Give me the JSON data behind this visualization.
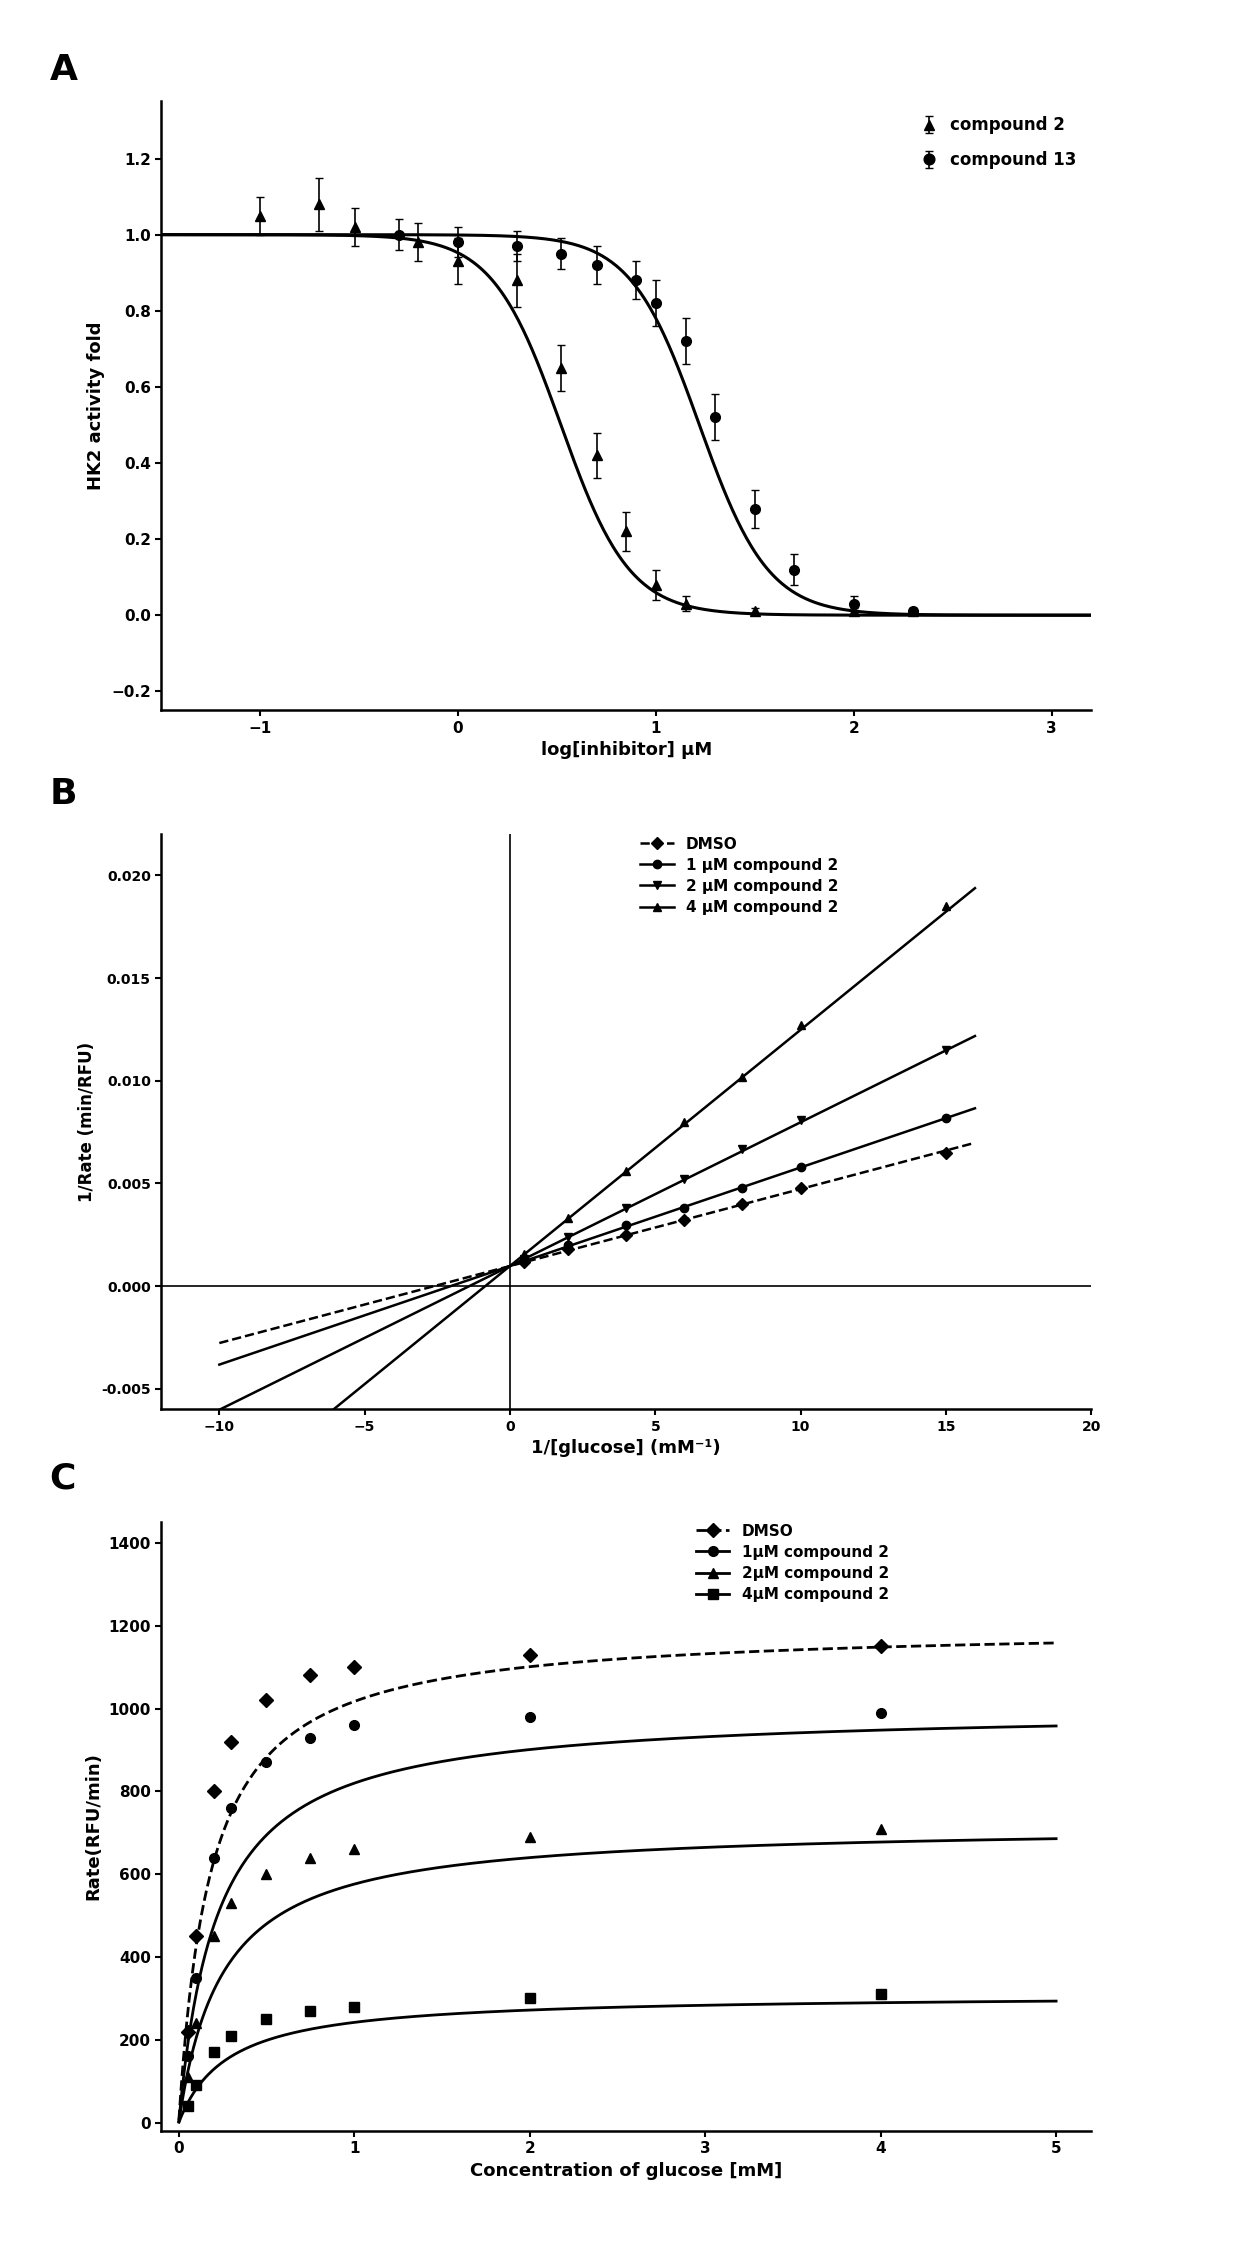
{
  "panel_A": {
    "label": "A",
    "xlabel": "log[inhibitor] μM",
    "ylabel": "HK2 activity fold",
    "xlim": [
      -1.5,
      3.2
    ],
    "ylim": [
      -0.25,
      1.35
    ],
    "xticks": [
      -1,
      0,
      1,
      2,
      3
    ],
    "yticks": [
      -0.2,
      0.0,
      0.2,
      0.4,
      0.6,
      0.8,
      1.0,
      1.2
    ],
    "compound2": {
      "x_data": [
        -1.0,
        -0.7,
        -0.52,
        -0.2,
        0.0,
        0.3,
        0.52,
        0.7,
        0.85,
        1.0,
        1.15,
        1.5,
        2.0,
        2.3
      ],
      "y_data": [
        1.05,
        1.08,
        1.02,
        0.98,
        0.93,
        0.88,
        0.65,
        0.42,
        0.22,
        0.08,
        0.03,
        0.01,
        0.01,
        0.01
      ],
      "y_err": [
        0.05,
        0.07,
        0.05,
        0.05,
        0.06,
        0.07,
        0.06,
        0.06,
        0.05,
        0.04,
        0.02,
        0.01,
        0.01,
        0.01
      ],
      "ic50_log": 0.52,
      "hill": 2.5,
      "color": "#000000",
      "marker": "^",
      "label": "compound 2"
    },
    "compound13": {
      "x_data": [
        -0.3,
        0.0,
        0.3,
        0.52,
        0.7,
        0.9,
        1.0,
        1.15,
        1.3,
        1.5,
        1.7,
        2.0,
        2.3
      ],
      "y_data": [
        1.0,
        0.98,
        0.97,
        0.95,
        0.92,
        0.88,
        0.82,
        0.72,
        0.52,
        0.28,
        0.12,
        0.03,
        0.01
      ],
      "y_err": [
        0.04,
        0.04,
        0.04,
        0.04,
        0.05,
        0.05,
        0.06,
        0.06,
        0.06,
        0.05,
        0.04,
        0.02,
        0.01
      ],
      "ic50_log": 1.22,
      "hill": 2.5,
      "color": "#000000",
      "marker": "o",
      "label": "compound 13"
    }
  },
  "panel_B": {
    "label": "B",
    "xlabel": "1/[glucose] (mM⁻¹)",
    "ylabel": "1/Rate (min/RFU)",
    "xlim": [
      -12,
      20
    ],
    "ylim": [
      -0.006,
      0.022
    ],
    "xticks": [
      -10,
      -5,
      0,
      5,
      10,
      15,
      20
    ],
    "yticks": [
      -0.005,
      0.0,
      0.005,
      0.01,
      0.015,
      0.02
    ],
    "lines": [
      {
        "label": "DMSO",
        "color": "#000000",
        "linestyle": "--",
        "marker": "D",
        "slope": 0.000375,
        "intercept": 0.00098,
        "x_pts": [
          0.5,
          2,
          4,
          6,
          8,
          10,
          15
        ],
        "y_pts": [
          0.00116,
          0.0018,
          0.0025,
          0.0032,
          0.004,
          0.0048,
          0.0065
        ]
      },
      {
        "label": "1 μM compound 2",
        "color": "#000000",
        "linestyle": "-",
        "marker": "o",
        "slope": 0.00048,
        "intercept": 0.00098,
        "x_pts": [
          0.5,
          2,
          4,
          6,
          8,
          10,
          15
        ],
        "y_pts": [
          0.00122,
          0.002,
          0.003,
          0.0038,
          0.0048,
          0.0058,
          0.0082
        ]
      },
      {
        "label": "2 μM compound 2",
        "color": "#000000",
        "linestyle": "-",
        "marker": "v",
        "slope": 0.0007,
        "intercept": 0.00098,
        "x_pts": [
          0.5,
          2,
          4,
          6,
          8,
          10,
          15
        ],
        "y_pts": [
          0.00133,
          0.0024,
          0.0038,
          0.0052,
          0.0067,
          0.0081,
          0.0115
        ]
      },
      {
        "label": "4 μM compound 2",
        "color": "#000000",
        "linestyle": "-",
        "marker": "^",
        "slope": 0.00115,
        "intercept": 0.00098,
        "x_pts": [
          0.5,
          2,
          4,
          6,
          8,
          10,
          15
        ],
        "y_pts": [
          0.00156,
          0.0033,
          0.0056,
          0.008,
          0.0102,
          0.0127,
          0.0185
        ]
      }
    ]
  },
  "panel_C": {
    "label": "C",
    "xlabel": "Concentration of glucose [mM]",
    "ylabel": "Rate(RFU/min)",
    "xlim": [
      -0.1,
      5.2
    ],
    "ylim": [
      -20,
      1450
    ],
    "xticks": [
      0,
      1,
      2,
      3,
      4,
      5
    ],
    "yticks": [
      0,
      200,
      400,
      600,
      800,
      1000,
      1200,
      1400
    ],
    "curves": [
      {
        "label": "DMSO",
        "color": "#000000",
        "linestyle": "--",
        "marker": "D",
        "Vmax": 1200,
        "Km": 0.18,
        "x_pts": [
          0.05,
          0.1,
          0.2,
          0.3,
          0.5,
          0.75,
          1.0,
          2.0,
          4.0
        ],
        "y_pts": [
          220,
          450,
          800,
          920,
          1020,
          1080,
          1100,
          1130,
          1150
        ]
      },
      {
        "label": "1μM compound 2",
        "color": "#000000",
        "linestyle": "-",
        "marker": "o",
        "Vmax": 1000,
        "Km": 0.22,
        "x_pts": [
          0.05,
          0.1,
          0.2,
          0.3,
          0.5,
          0.75,
          1.0,
          2.0,
          4.0
        ],
        "y_pts": [
          160,
          350,
          640,
          760,
          870,
          930,
          960,
          980,
          990
        ]
      },
      {
        "label": "2μM compound 2",
        "color": "#000000",
        "linestyle": "-",
        "marker": "^",
        "Vmax": 720,
        "Km": 0.25,
        "x_pts": [
          0.05,
          0.1,
          0.2,
          0.3,
          0.5,
          0.75,
          1.0,
          2.0,
          4.0
        ],
        "y_pts": [
          110,
          240,
          450,
          530,
          600,
          640,
          660,
          690,
          710
        ]
      },
      {
        "label": "4μM compound 2",
        "color": "#000000",
        "linestyle": "-",
        "marker": "s",
        "Vmax": 310,
        "Km": 0.28,
        "x_pts": [
          0.05,
          0.1,
          0.2,
          0.3,
          0.5,
          0.75,
          1.0,
          2.0,
          4.0
        ],
        "y_pts": [
          40,
          90,
          170,
          210,
          250,
          270,
          280,
          300,
          310
        ]
      }
    ]
  },
  "bg_color": "#ffffff",
  "text_color": "#000000"
}
